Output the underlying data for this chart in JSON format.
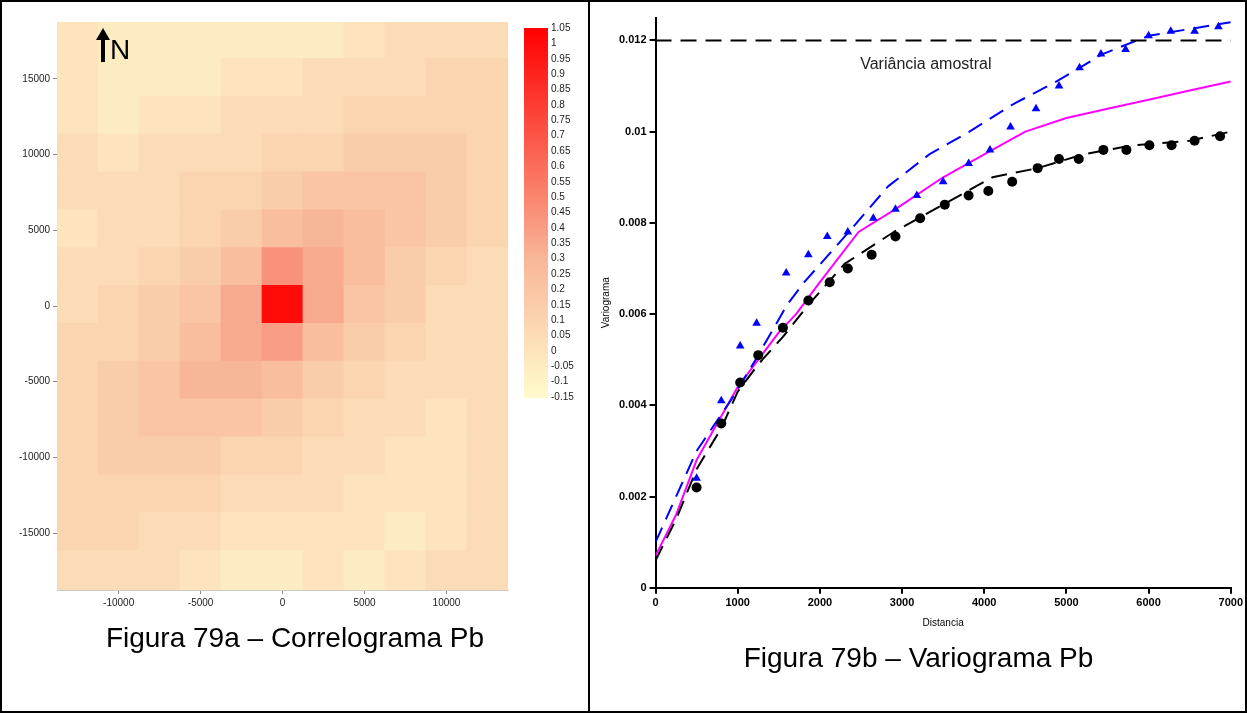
{
  "chart_data": [
    {
      "type": "heatmap",
      "categories": [
        null,
        "-10000",
        null,
        "-5000",
        null,
        "0",
        null,
        "5000",
        null,
        "10000",
        null
      ],
      "y_categories": [
        null,
        "15000",
        null,
        "10000",
        null,
        "5000",
        null,
        "0",
        null,
        "-5000",
        null,
        "-10000",
        null,
        "-15000",
        null
      ],
      "cells": [
        [
          0,
          -0.05,
          -0.05,
          -0.05,
          -0.05,
          -0.05,
          -0.05,
          0,
          0.05,
          0.05,
          0.05
        ],
        [
          0,
          -0.05,
          -0.05,
          -0.05,
          0,
          0,
          0.05,
          0.05,
          0.05,
          0.1,
          0.1
        ],
        [
          0,
          -0.05,
          0,
          0,
          0.05,
          0.05,
          0.05,
          0.1,
          0.1,
          0.1,
          0.1
        ],
        [
          0.05,
          0,
          0.05,
          0.05,
          0.05,
          0.1,
          0.1,
          0.15,
          0.15,
          0.15,
          0.1
        ],
        [
          0.05,
          0.05,
          0.05,
          0.1,
          0.1,
          0.15,
          0.2,
          0.2,
          0.2,
          0.15,
          0.1
        ],
        [
          0,
          0.05,
          0.05,
          0.1,
          0.15,
          0.25,
          0.3,
          0.25,
          0.2,
          0.15,
          0.1
        ],
        [
          0.05,
          0.05,
          0.1,
          0.15,
          0.25,
          0.45,
          0.35,
          0.25,
          0.15,
          0.1,
          0.05
        ],
        [
          0.05,
          0.1,
          0.15,
          0.2,
          0.35,
          1,
          0.35,
          0.2,
          0.15,
          0.05,
          0.05
        ],
        [
          0.1,
          0.1,
          0.15,
          0.25,
          0.35,
          0.4,
          0.25,
          0.15,
          0.1,
          0.05,
          0.05
        ],
        [
          0.1,
          0.15,
          0.2,
          0.3,
          0.3,
          0.25,
          0.15,
          0.1,
          0.05,
          0.05,
          0.05
        ],
        [
          0.1,
          0.15,
          0.2,
          0.2,
          0.2,
          0.15,
          0.1,
          0.05,
          0.05,
          0,
          0.05
        ],
        [
          0.1,
          0.15,
          0.15,
          0.15,
          0.1,
          0.1,
          0.05,
          0.05,
          0,
          0,
          0.05
        ],
        [
          0.1,
          0.1,
          0.1,
          0.1,
          0.05,
          0.05,
          0.05,
          0,
          0,
          0,
          0.05
        ],
        [
          0.1,
          0.1,
          0.05,
          0.05,
          0,
          0,
          0,
          0,
          -0.05,
          0,
          0.05
        ],
        [
          0.05,
          0.05,
          0.05,
          0,
          -0.05,
          -0.05,
          0,
          -0.05,
          0,
          0.05,
          0.05
        ]
      ],
      "clim": [
        -0.15,
        1.05
      ],
      "cticks": [
        1.05,
        1,
        0.95,
        0.9,
        0.85,
        0.8,
        0.75,
        0.7,
        0.65,
        0.6,
        0.55,
        0.5,
        0.45,
        0.4,
        0.35,
        0.3,
        0.25,
        0.2,
        0.15,
        0.1,
        0.05,
        0,
        -0.05,
        -0.1,
        -0.15
      ],
      "annotations": [
        "N",
        "Figura 79a – Correlograma Pb"
      ]
    },
    {
      "type": "scatter",
      "xlabel": "Distancia",
      "ylabel": "Variograma",
      "xlim": [
        0,
        7000
      ],
      "xticks": [
        0,
        1000,
        2000,
        3000,
        4000,
        5000,
        6000,
        7000
      ],
      "ylim": [
        0,
        0.0125
      ],
      "yticks": [
        0,
        0.002,
        0.004,
        0.006,
        0.008,
        0.01,
        0.012
      ],
      "grid": false,
      "legend": false,
      "series": [
        {
          "type": "line",
          "color": "#0000ff",
          "line_style": "dashed",
          "marker": "none",
          "x": [
            0,
            250,
            500,
            950,
            1250,
            1600,
            1810,
            2400,
            2830,
            3330,
            3820,
            4350,
            4880,
            5440,
            6000,
            7000
          ],
          "values": [
            0.001,
            0.002,
            0.003,
            0.0042,
            0.0051,
            0.0062,
            0.0067,
            0.0079,
            0.0088,
            0.0095,
            0.01,
            0.0106,
            0.0111,
            0.0117,
            0.0121,
            0.0124
          ]
        },
        {
          "type": "line",
          "color": "#000000",
          "line_style": "dashed",
          "marker": "none",
          "x": [
            0,
            250,
            500,
            800,
            1000,
            1250,
            1550,
            1860,
            2300,
            2900,
            3500,
            4100,
            4650,
            5200,
            5800,
            6500,
            7000
          ],
          "values": [
            0.0006,
            0.0015,
            0.0026,
            0.0035,
            0.0043,
            0.0049,
            0.0055,
            0.0062,
            0.0071,
            0.0078,
            0.0084,
            0.009,
            0.0092,
            0.0095,
            0.0097,
            0.0098,
            0.01
          ]
        },
        {
          "type": "line",
          "color": "#ff00ff",
          "line_style": "solid",
          "marker": "none",
          "x": [
            0,
            250,
            500,
            750,
            1000,
            1250,
            1500,
            1710,
            2000,
            2470,
            2920,
            3500,
            4000,
            4500,
            5000,
            5500,
            6000,
            6500,
            7000
          ],
          "values": [
            0.0007,
            0.0016,
            0.0028,
            0.0036,
            0.0044,
            0.005,
            0.0056,
            0.006,
            0.0067,
            0.0078,
            0.0083,
            0.009,
            0.0095,
            0.01,
            0.0103,
            0.0105,
            0.0107,
            0.0109,
            0.0111
          ]
        },
        {
          "type": "scatter",
          "color": "#0000ff",
          "marker": "triangle",
          "x": [
            500,
            800,
            1030,
            1230,
            1590,
            1860,
            2090,
            2340,
            2650,
            2920,
            3180,
            3500,
            3810,
            4070,
            4320,
            4630,
            4910,
            5160,
            5420,
            5720,
            6000,
            6270,
            6560,
            6850
          ],
          "values": [
            0.0024,
            0.0041,
            0.0053,
            0.0058,
            0.0069,
            0.0073,
            0.0077,
            0.0078,
            0.0081,
            0.0083,
            0.0086,
            0.0089,
            0.0093,
            0.0096,
            0.0101,
            0.0105,
            0.011,
            0.0114,
            0.0117,
            0.0118,
            0.0121,
            0.0122,
            0.0122,
            0.0123
          ]
        },
        {
          "type": "scatter",
          "color": "#000000",
          "marker": "circle",
          "x": [
            500,
            800,
            1030,
            1250,
            1550,
            1860,
            2120,
            2340,
            2630,
            2920,
            3220,
            3520,
            3810,
            4050,
            4340,
            4650,
            4910,
            5150,
            5450,
            5730,
            6010,
            6280,
            6560,
            6870
          ],
          "values": [
            0.0022,
            0.0036,
            0.0045,
            0.0051,
            0.0057,
            0.0063,
            0.0067,
            0.007,
            0.0073,
            0.0077,
            0.0081,
            0.0084,
            0.0086,
            0.0087,
            0.0089,
            0.0092,
            0.0094,
            0.0094,
            0.0096,
            0.0096,
            0.0097,
            0.0097,
            0.0098,
            0.0099
          ]
        }
      ],
      "ref_lines": [
        {
          "axis": "y",
          "value": 0.012,
          "label": "Variância amostral",
          "color": "#000000",
          "line_style": "dashed"
        }
      ],
      "annotations": [
        "Figura 79b – Variograma Pb"
      ]
    }
  ]
}
